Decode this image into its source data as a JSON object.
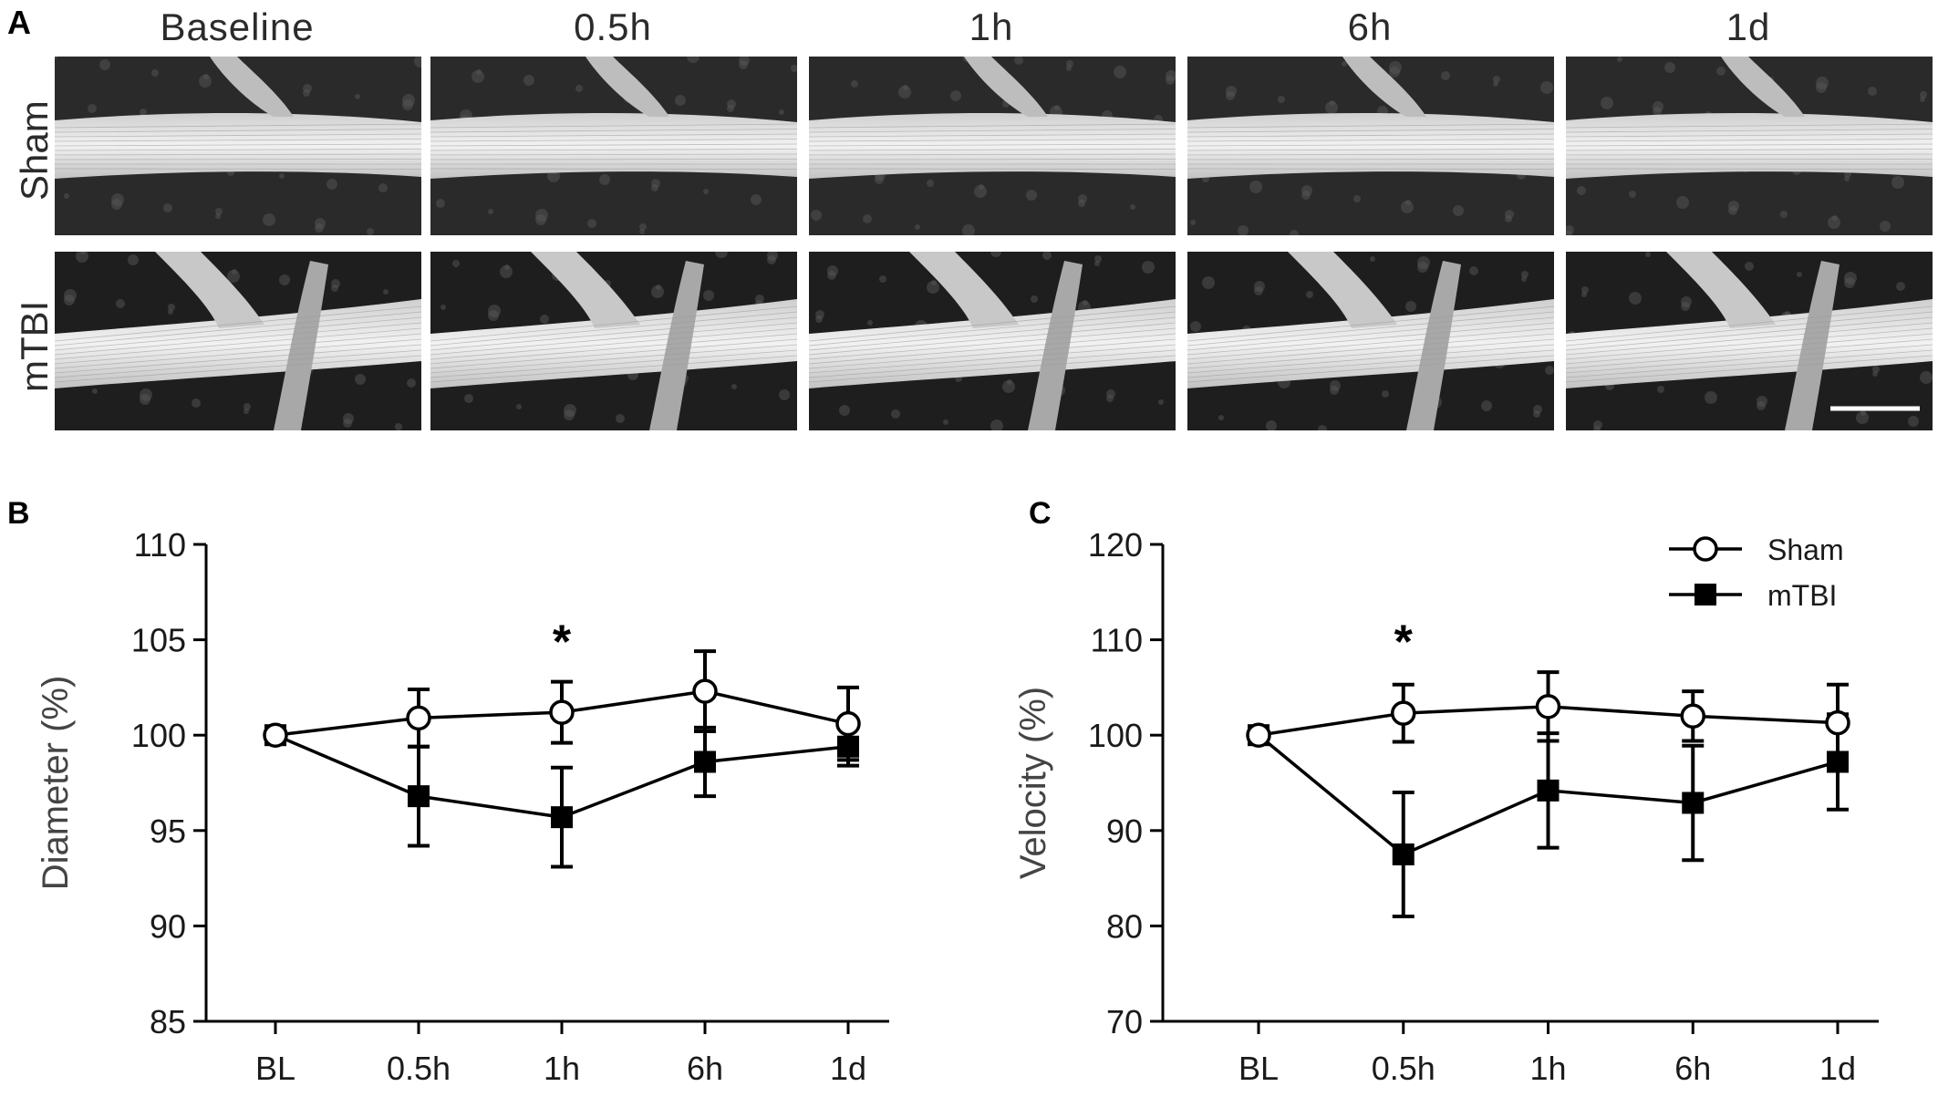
{
  "panel_a": {
    "letter": "A",
    "columns": [
      "Baseline",
      "0.5h",
      "1h",
      "6h",
      "1d"
    ],
    "rows": [
      "Sham",
      "mTBI"
    ]
  },
  "chart_data": [
    {
      "panel": "B",
      "type": "line",
      "ylabel": "Diameter (%)",
      "xlabel": "",
      "categories": [
        "BL",
        "0.5h",
        "1h",
        "6h",
        "1d"
      ],
      "ylim": [
        85,
        110
      ],
      "yticks": [
        "85",
        "90",
        "95",
        "100",
        "105",
        "110"
      ],
      "series": [
        {
          "name": "Sham",
          "marker": "open-circle",
          "values": [
            100,
            100.9,
            101.2,
            102.3,
            100.6
          ],
          "errors": [
            0,
            1.5,
            1.6,
            2.1,
            1.9
          ]
        },
        {
          "name": "mTBI",
          "marker": "filled-square",
          "values": [
            100,
            96.8,
            95.7,
            98.6,
            99.4
          ],
          "errors": [
            0,
            2.6,
            2.6,
            1.8,
            1.0
          ]
        }
      ],
      "annotations": [
        {
          "text": "*",
          "category": "1h",
          "y": 105.3
        }
      ]
    },
    {
      "panel": "C",
      "type": "line",
      "ylabel": "Velocity (%)",
      "xlabel": "",
      "categories": [
        "BL",
        "0.5h",
        "1h",
        "6h",
        "1d"
      ],
      "ylim": [
        70,
        120
      ],
      "yticks": [
        "70",
        "80",
        "90",
        "100",
        "110",
        "120"
      ],
      "series": [
        {
          "name": "Sham",
          "marker": "open-circle",
          "values": [
            100,
            102.3,
            103.0,
            102.0,
            101.3
          ],
          "errors": [
            0,
            3.0,
            3.6,
            2.6,
            4.0
          ]
        },
        {
          "name": "mTBI",
          "marker": "filled-square",
          "values": [
            100,
            87.5,
            94.2,
            92.9,
            97.2
          ],
          "errors": [
            0,
            6.5,
            6.0,
            6.0,
            5.0
          ]
        }
      ],
      "annotations": [
        {
          "text": "*",
          "category": "0.5h",
          "y": 110.6
        }
      ],
      "legend": {
        "placement": "top-right",
        "entries": [
          "Sham",
          "mTBI"
        ]
      }
    }
  ]
}
